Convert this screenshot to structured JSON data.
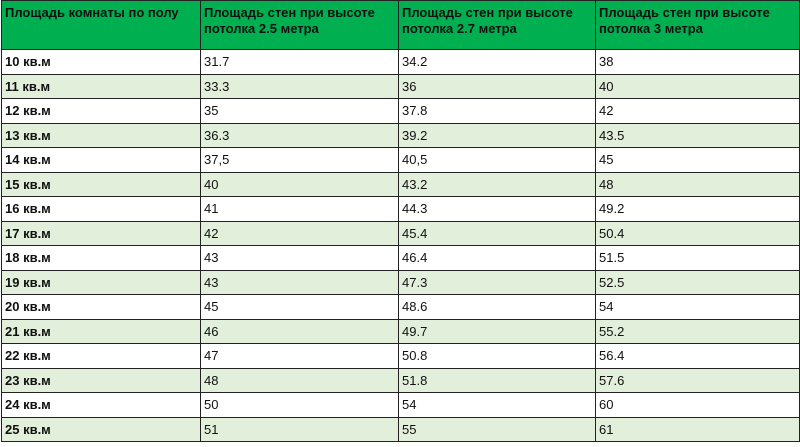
{
  "table": {
    "header": [
      "Площадь комнаты по полу",
      "Площадь стен при высоте потолка 2.5 метра",
      "Площадь стен при высоте потолка 2.7 метра",
      "Площадь стен при высоте потолка 3 метра"
    ],
    "rows": [
      [
        "10 кв.м",
        "31.7",
        "34.2",
        "38"
      ],
      [
        "11 кв.м",
        "33.3",
        "36",
        "40"
      ],
      [
        "12 кв.м",
        "35",
        "37.8",
        "42"
      ],
      [
        "13 кв.м",
        "36.3",
        "39.2",
        "43.5"
      ],
      [
        "14 кв.м",
        "37,5",
        "40,5",
        "45"
      ],
      [
        "15 кв.м",
        "40",
        "43.2",
        "48"
      ],
      [
        "16 кв.м",
        "41",
        "44.3",
        "49.2"
      ],
      [
        "17 кв.м",
        "42",
        "45.4",
        "50.4"
      ],
      [
        "18 кв.м",
        "43",
        "46.4",
        "51.5"
      ],
      [
        "19 кв.м",
        "43",
        "47.3",
        "52.5"
      ],
      [
        "20 кв.м",
        "45",
        "48.6",
        "54"
      ],
      [
        "21 кв.м",
        "46",
        "49.7",
        "55.2"
      ],
      [
        "22 кв.м",
        "47",
        "50.8",
        "56.4"
      ],
      [
        "23 кв.м",
        "48",
        "51.8",
        "57.6"
      ],
      [
        "24 кв.м",
        "50",
        "54",
        "60"
      ],
      [
        "25 кв.м",
        "51",
        "55",
        "61"
      ]
    ]
  }
}
